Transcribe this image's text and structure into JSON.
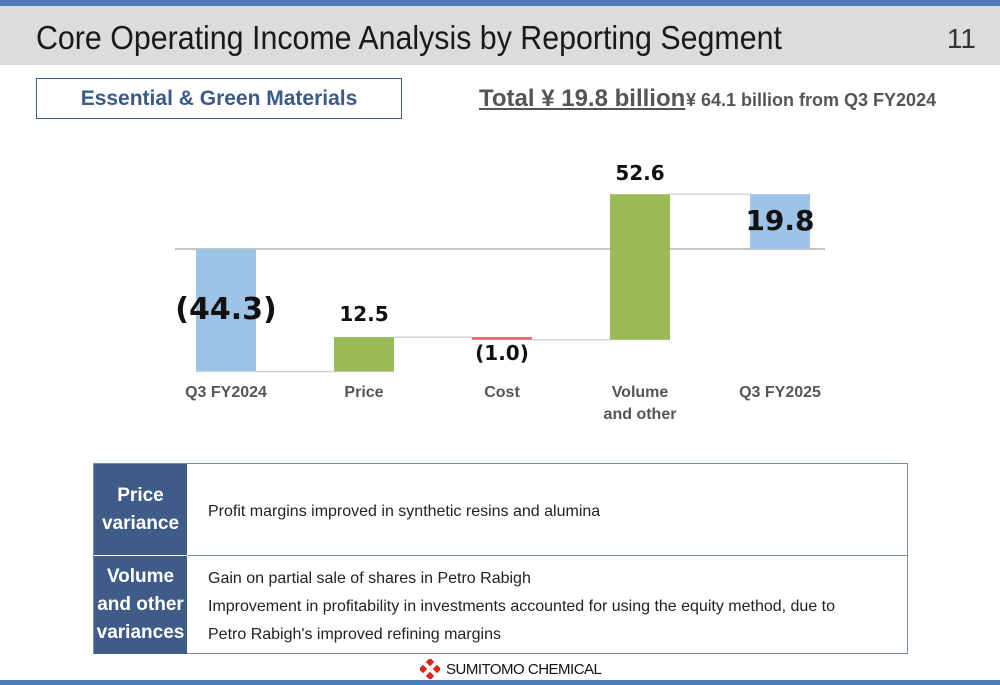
{
  "header": {
    "title": "Core Operating Income Analysis by Reporting Segment",
    "page_number": "11"
  },
  "segment": {
    "label": "Essential & Green Materials",
    "total": "Total ¥ 19.8 billion",
    "change": "¥ 64.1 billion from Q3 FY2024"
  },
  "chart_data": {
    "type": "bar",
    "subtype": "waterfall",
    "categories": [
      "Q3 FY2024",
      "Price",
      "Cost",
      "Volume\nand other",
      "Q3 FY2025"
    ],
    "values": [
      -44.3,
      12.5,
      -1.0,
      52.6,
      19.8
    ],
    "value_labels": [
      "(44.3)",
      "12.5",
      "(1.0)",
      "52.6",
      "19.8"
    ],
    "kinds": [
      "total",
      "delta",
      "delta",
      "delta",
      "total"
    ],
    "units": "¥ billion",
    "colors": {
      "total": "#9dc3e6",
      "increase": "#9bbb59",
      "decrease": "#e46c6c",
      "baseline": "#8c8c8c",
      "connector": "#bfbfbf"
    },
    "title": "",
    "xlabel": "",
    "ylabel": "",
    "grid": false,
    "legend": "none"
  },
  "table": {
    "rows": [
      {
        "header": "Price variance",
        "lines": [
          "Profit margins improved in synthetic resins and alumina"
        ]
      },
      {
        "header": "Volume and other variances",
        "lines": [
          "Gain on partial sale of shares in Petro Rabigh",
          "Improvement in profitability in investments accounted for using the equity method, due to",
          "Petro Rabigh's improved refining margins"
        ]
      }
    ]
  },
  "footer": {
    "logo_text": "SUMITOMO CHEMICAL",
    "logo_icon": "sumitomo-logo-icon"
  },
  "theme": {
    "accent": "#4f7ab8",
    "header_cell": "#3f5b87"
  }
}
